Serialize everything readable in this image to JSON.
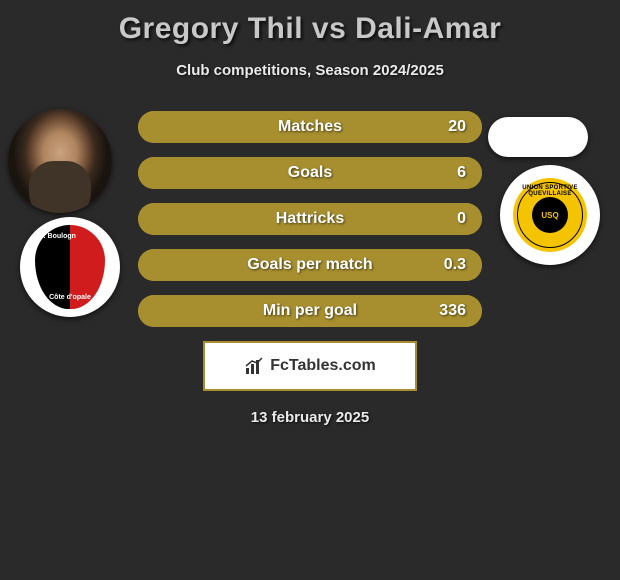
{
  "title": "Gregory Thil vs Dali-Amar",
  "subtitle": "Club competitions, Season 2024/2025",
  "date": "13 february 2025",
  "site_logo_text": "FcTables.com",
  "left_club": {
    "top_text": "S. Boulogn",
    "bottom_text": "Côte d'opale"
  },
  "right_club": {
    "arc_text": "UNION SPORTIVE QUEVILLAISE",
    "core_text": "USQ"
  },
  "colors": {
    "background": "#2a2a2a",
    "bar_base": "#bda23a",
    "bar_fill": "#a78f2f",
    "title_text": "#c8c8c8",
    "body_text": "#eaeaea",
    "logo_border": "#a78f2f"
  },
  "bars": [
    {
      "label": "Matches",
      "value": "20",
      "fill_pct": 100
    },
    {
      "label": "Goals",
      "value": "6",
      "fill_pct": 100
    },
    {
      "label": "Hattricks",
      "value": "0",
      "fill_pct": 100
    },
    {
      "label": "Goals per match",
      "value": "0.3",
      "fill_pct": 100
    },
    {
      "label": "Min per goal",
      "value": "336",
      "fill_pct": 100
    }
  ]
}
